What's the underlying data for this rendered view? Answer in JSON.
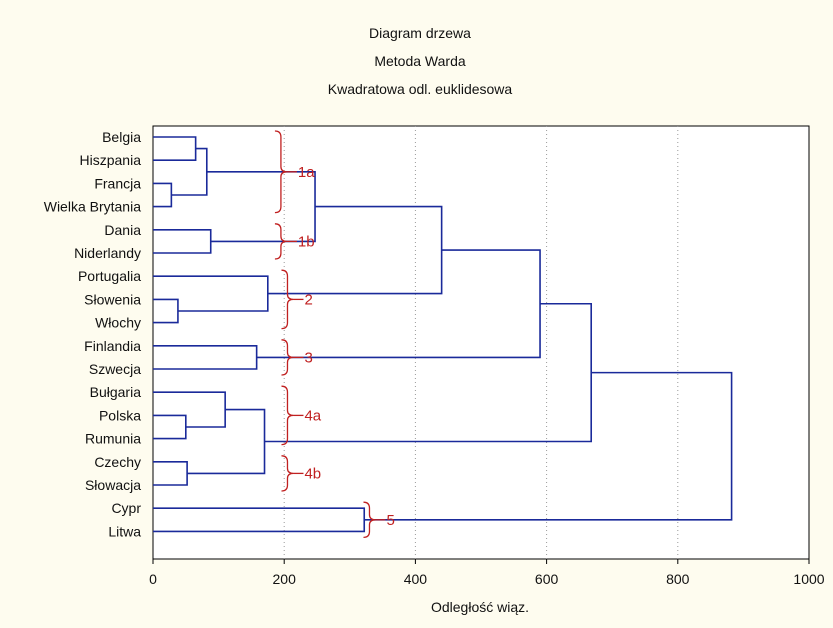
{
  "chart_data": {
    "type": "dendrogram",
    "title": [
      "Diagram drzewa",
      "Metoda Warda",
      "Kwadratowa odl. euklidesowa"
    ],
    "xlabel": "Odległość wiąz.",
    "xlim": [
      0,
      1000
    ],
    "xticks": [
      0,
      200,
      400,
      600,
      800,
      1000
    ],
    "grid": "vertical dotted",
    "leaves": [
      "Belgia",
      "Hiszpania",
      "Francja",
      "Wielka Brytania",
      "Dania",
      "Niderlandy",
      "Portugalia",
      "Słowenia",
      "Włochy",
      "Finlandia",
      "Szwecja",
      "Bułgaria",
      "Polska",
      "Rumunia",
      "Czechy",
      "Słowacja",
      "Cypr",
      "Litwa"
    ],
    "merges": [
      {
        "id": "c1",
        "children": [
          "Belgia",
          "Hiszpania"
        ],
        "height": 65
      },
      {
        "id": "c2",
        "children": [
          "Francja",
          "Wielka Brytania"
        ],
        "height": 28
      },
      {
        "id": "c3",
        "children": [
          "c1",
          "c2"
        ],
        "height": 82
      },
      {
        "id": "c4",
        "children": [
          "Dania",
          "Niderlandy"
        ],
        "height": 88
      },
      {
        "id": "c5",
        "children": [
          "c3",
          "c4"
        ],
        "height": 247
      },
      {
        "id": "c6",
        "children": [
          "Słowenia",
          "Włochy"
        ],
        "height": 38
      },
      {
        "id": "c7",
        "children": [
          "Portugalia",
          "c6"
        ],
        "height": 175
      },
      {
        "id": "c8",
        "children": [
          "c5",
          "c7"
        ],
        "height": 440
      },
      {
        "id": "c9",
        "children": [
          "Finlandia",
          "Szwecja"
        ],
        "height": 158
      },
      {
        "id": "c10",
        "children": [
          "c8",
          "c9"
        ],
        "height": 590
      },
      {
        "id": "c11",
        "children": [
          "Polska",
          "Rumunia"
        ],
        "height": 50
      },
      {
        "id": "c12",
        "children": [
          "Bułgaria",
          "c11"
        ],
        "height": 110
      },
      {
        "id": "c13",
        "children": [
          "Czechy",
          "Słowacja"
        ],
        "height": 52
      },
      {
        "id": "c14",
        "children": [
          "c12",
          "c13"
        ],
        "height": 170
      },
      {
        "id": "c15",
        "children": [
          "c10",
          "c14"
        ],
        "height": 668
      },
      {
        "id": "c16",
        "children": [
          "Cypr",
          "Litwa"
        ],
        "height": 322
      },
      {
        "id": "c17",
        "children": [
          "c15",
          "c16"
        ],
        "height": 882
      }
    ],
    "groups": [
      {
        "label": "1a",
        "first": "Belgia",
        "last": "Wielka Brytania",
        "x": 195
      },
      {
        "label": "1b",
        "first": "Dania",
        "last": "Niderlandy",
        "x": 195
      },
      {
        "label": "2",
        "first": "Portugalia",
        "last": "Włochy",
        "x": 205
      },
      {
        "label": "3",
        "first": "Finlandia",
        "last": "Szwecja",
        "x": 205
      },
      {
        "label": "4a",
        "first": "Bułgaria",
        "last": "Rumunia",
        "x": 205
      },
      {
        "label": "4b",
        "first": "Czechy",
        "last": "Słowacja",
        "x": 205
      },
      {
        "label": "5",
        "first": "Cypr",
        "last": "Litwa",
        "x": 330
      }
    ]
  },
  "colors": {
    "background": "#fefcef",
    "plot_background": "#ffffff",
    "link": "#1a2a9a",
    "group_annotation": "#c02020",
    "grid": "#9a9a9a"
  }
}
